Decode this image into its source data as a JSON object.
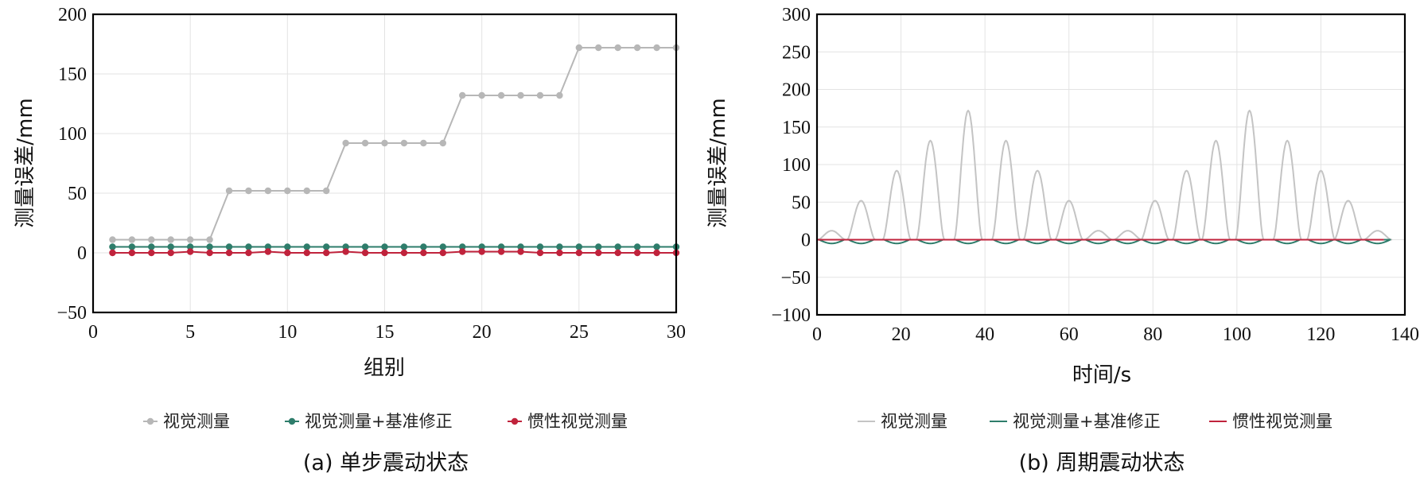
{
  "chart_data": [
    {
      "type": "line",
      "xlabel": "组别",
      "ylabel": "测量误差/mm",
      "xlim": [
        0,
        30
      ],
      "ylim": [
        -50,
        200
      ],
      "xticks": [
        "0",
        "5",
        "10",
        "15",
        "20",
        "25",
        "30"
      ],
      "yticks": [
        "−50",
        "0",
        "50",
        "100",
        "150",
        "200"
      ],
      "grid": true,
      "legend_position": "bottom",
      "caption": "(a) 单步震动状态",
      "x": [
        1,
        2,
        3,
        4,
        5,
        6,
        7,
        8,
        9,
        10,
        11,
        12,
        13,
        14,
        15,
        16,
        17,
        18,
        19,
        20,
        21,
        22,
        23,
        24,
        25,
        26,
        27,
        28,
        29,
        30
      ],
      "series": [
        {
          "name": "视觉测量",
          "color": "#b7b7b7",
          "marker": "circle",
          "values": [
            11,
            11,
            11,
            11,
            11,
            11,
            52,
            52,
            52,
            52,
            52,
            52,
            92,
            92,
            92,
            92,
            92,
            92,
            132,
            132,
            132,
            132,
            132,
            132,
            172,
            172,
            172,
            172,
            172,
            172
          ]
        },
        {
          "name": "视觉测量+基准修正",
          "color": "#2e7d6b",
          "marker": "circle",
          "values": [
            5,
            5,
            5,
            5,
            5,
            5,
            5,
            5,
            5,
            5,
            5,
            5,
            5,
            5,
            5,
            5,
            5,
            5,
            5,
            5,
            5,
            5,
            5,
            5,
            5,
            5,
            5,
            5,
            5,
            5
          ]
        },
        {
          "name": "惯性视觉测量",
          "color": "#c0233c",
          "marker": "circle",
          "values": [
            0,
            0,
            0,
            0,
            1,
            0,
            0,
            0,
            1,
            0,
            0,
            0,
            1,
            0,
            0,
            0,
            0,
            0,
            1,
            1,
            1,
            1,
            0,
            0,
            0,
            0,
            0,
            0,
            0,
            0
          ]
        }
      ]
    },
    {
      "type": "line",
      "xlabel": "时间/s",
      "ylabel": "测量误差/mm",
      "xlim": [
        0,
        140
      ],
      "ylim": [
        -100,
        300
      ],
      "xticks": [
        "0",
        "20",
        "40",
        "60",
        "80",
        "100",
        "120",
        "140"
      ],
      "yticks": [
        "−100",
        "−50",
        "0",
        "50",
        "100",
        "150",
        "200",
        "250",
        "300"
      ],
      "grid": true,
      "legend_position": "bottom",
      "caption": "(b) 周期震动状态",
      "peaks": [
        {
          "x": 3.5,
          "value": 12
        },
        {
          "x": 10.5,
          "value": 52
        },
        {
          "x": 19,
          "value": 92
        },
        {
          "x": 27,
          "value": 132
        },
        {
          "x": 36,
          "value": 172
        },
        {
          "x": 45,
          "value": 132
        },
        {
          "x": 52.5,
          "value": 92
        },
        {
          "x": 60,
          "value": 52
        },
        {
          "x": 67,
          "value": 12
        },
        {
          "x": 74,
          "value": 12
        },
        {
          "x": 80.5,
          "value": 52
        },
        {
          "x": 88,
          "value": 92
        },
        {
          "x": 95,
          "value": 132
        },
        {
          "x": 103,
          "value": 172
        },
        {
          "x": 112,
          "value": 132
        },
        {
          "x": 120,
          "value": 92
        },
        {
          "x": 126.5,
          "value": 52
        },
        {
          "x": 133.5,
          "value": 12
        }
      ],
      "series": [
        {
          "name": "视觉测量",
          "color": "#c4c4c4",
          "shape": "peaks",
          "baseline": 0
        },
        {
          "name": "视觉测量+基准修正",
          "color": "#2e7d6b",
          "shape": "dips",
          "dip_depth": -5
        },
        {
          "name": "惯性视觉测量",
          "color": "#c0233c",
          "shape": "flat",
          "baseline": 0
        }
      ]
    }
  ]
}
